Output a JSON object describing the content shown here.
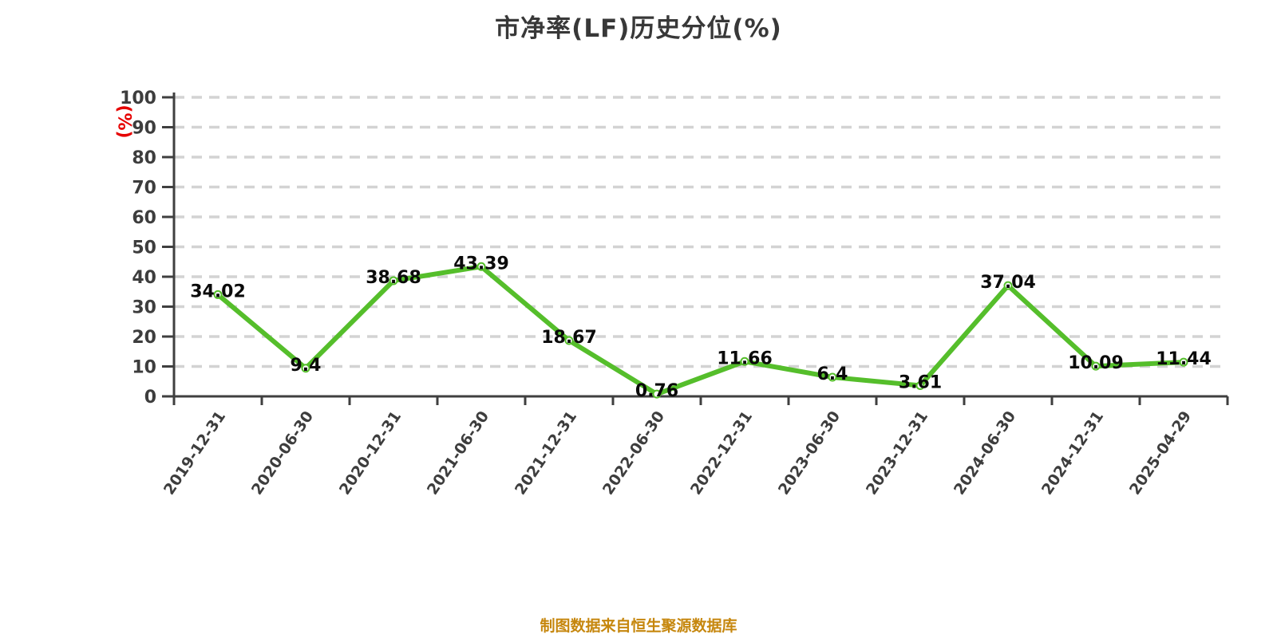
{
  "title": "市净率(LF)历史分位(%)",
  "footer": "制图数据来自恒生聚源数据库",
  "chart_data": {
    "type": "line",
    "title": "市净率(LF)历史分位(%)",
    "categories": [
      "2019-12-31",
      "2020-06-30",
      "2020-12-31",
      "2021-06-30",
      "2021-12-31",
      "2022-06-30",
      "2022-12-31",
      "2023-06-30",
      "2023-12-31",
      "2024-06-30",
      "2024-12-31",
      "2025-04-29"
    ],
    "values": [
      34.02,
      9.4,
      38.68,
      43.39,
      18.67,
      0.76,
      11.66,
      6.4,
      3.61,
      37.04,
      10.09,
      11.44
    ],
    "point_labels": [
      "34.02",
      "9.4",
      "38.68",
      "43.39",
      "18.67",
      "0.76",
      "11.66",
      "6.4",
      "3.61",
      "37.04",
      "10.09",
      "11.44"
    ],
    "ylabel": "(%)",
    "xlabel": "",
    "ylim": [
      0,
      100
    ],
    "yticks": [
      0,
      10,
      20,
      30,
      40,
      50,
      60,
      70,
      80,
      90,
      100
    ],
    "grid": "horizontal-dashed",
    "legend": "none",
    "colors": {
      "line": "#55BE2B",
      "marker_fill": "#FFFFFF",
      "marker_stroke": "#55BE2B",
      "grid": "#D3D3D3",
      "axis": "#3F3F3F",
      "tick_label": "#3D3D3D",
      "value_label": "#0A0A0A",
      "title": "#383838",
      "y_unit": "#E60000",
      "footer": "#C6870E",
      "background": "#FFFFFF"
    }
  }
}
